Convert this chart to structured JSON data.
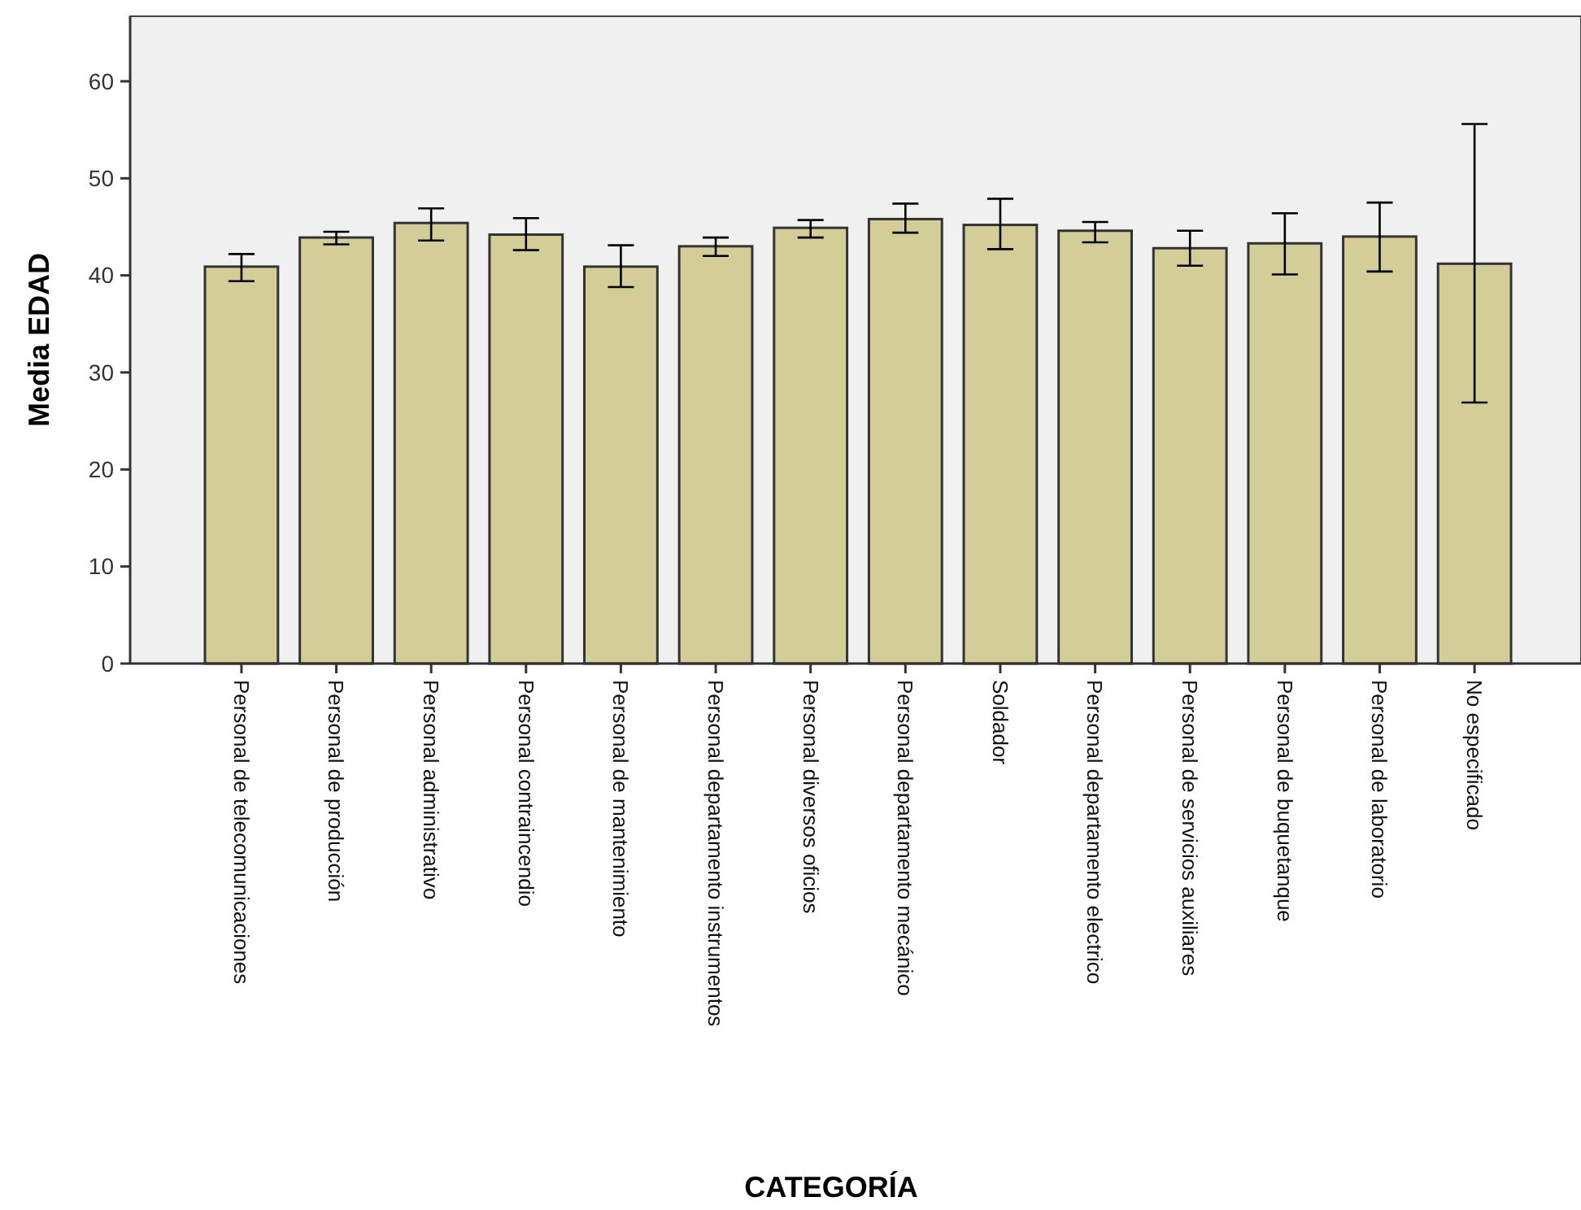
{
  "chart_data": {
    "type": "bar",
    "xlabel": "CATEGORÍA",
    "ylabel": "Media EDAD",
    "categories": [
      "Personal de telecomunicaciones",
      "Personal de producción",
      "Personal administrativo",
      "Personal contraincendio",
      "Personal de mantenimiento",
      "Personal departamento instrumentos",
      "Personal diversos oficios",
      "Personal departamento mecánico",
      "Soldador",
      "Personal departamento electrico",
      "Personal de servicios auxiliares",
      "Personal de buquetanque",
      "Personal de laboratorio",
      "No especificado"
    ],
    "values": [
      40.9,
      43.9,
      45.4,
      44.2,
      40.9,
      43.0,
      44.9,
      45.8,
      45.2,
      44.6,
      42.8,
      43.3,
      44.0,
      41.2
    ],
    "errors": [
      [
        39.4,
        42.2
      ],
      [
        43.2,
        44.5
      ],
      [
        43.6,
        46.9
      ],
      [
        42.6,
        45.9
      ],
      [
        38.8,
        43.1
      ],
      [
        42.0,
        43.9
      ],
      [
        43.9,
        45.7
      ],
      [
        44.4,
        47.4
      ],
      [
        42.7,
        47.9
      ],
      [
        43.4,
        45.5
      ],
      [
        41.0,
        44.6
      ],
      [
        40.1,
        46.4
      ],
      [
        40.4,
        47.5
      ],
      [
        26.9,
        55.6
      ]
    ],
    "color": "#d3ce97",
    "ylim": [
      0,
      66.7
    ],
    "yticks": [
      0,
      10,
      20,
      30,
      40,
      50,
      60
    ],
    "grid": false
  }
}
